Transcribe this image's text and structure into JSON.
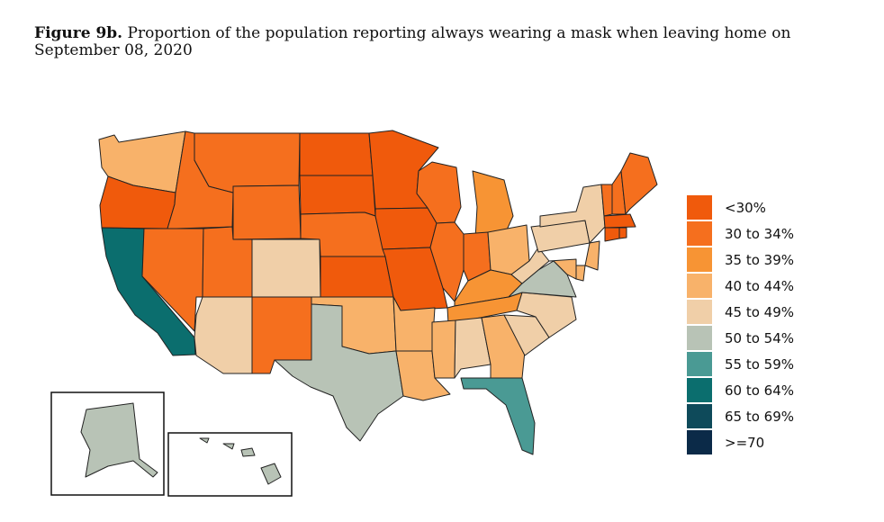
{
  "title": {
    "label": "Figure 9b.",
    "text": "Proportion of the population reporting always wearing a mask when leaving home on September 08, 2020"
  },
  "legend": [
    {
      "label": "<30%",
      "color": "#f05a0c"
    },
    {
      "label": "30 to 34%",
      "color": "#f56f1e"
    },
    {
      "label": "35 to 39%",
      "color": "#f79434"
    },
    {
      "label": "40 to 44%",
      "color": "#f8b26a"
    },
    {
      "label": "45 to 49%",
      "color": "#f0cfa8"
    },
    {
      "label": "50 to 54%",
      "color": "#b8c3b6"
    },
    {
      "label": "55 to 59%",
      "color": "#4a9a94"
    },
    {
      "label": "60 to 64%",
      "color": "#0b6e6e"
    },
    {
      "label": "65 to 69%",
      "color": "#0e4a5a"
    },
    {
      "label": ">=70",
      "color": "#0b2a48"
    }
  ],
  "states": {
    "WA": "40 to 44%",
    "OR": "<30%",
    "CA": "60 to 64%",
    "ID": "30 to 34%",
    "NV": "30 to 34%",
    "MT": "30 to 34%",
    "WY": "30 to 34%",
    "UT": "30 to 34%",
    "AZ": "45 to 49%",
    "CO": "45 to 49%",
    "NM": "30 to 34%",
    "ND": "<30%",
    "SD": "<30%",
    "NE": "30 to 34%",
    "KS": "<30%",
    "OK": "40 to 44%",
    "TX": "50 to 54%",
    "MN": "<30%",
    "IA": "<30%",
    "MO": "<30%",
    "AR": "40 to 44%",
    "LA": "40 to 44%",
    "WI": "30 to 34%",
    "IL": "30 to 34%",
    "MI": "35 to 39%",
    "IN": "30 to 34%",
    "OH": "40 to 44%",
    "KY": "35 to 39%",
    "TN": "35 to 39%",
    "MS": "40 to 44%",
    "AL": "45 to 49%",
    "GA": "40 to 44%",
    "FL": "55 to 59%",
    "SC": "45 to 49%",
    "NC": "45 to 49%",
    "VA": "50 to 54%",
    "WV": "45 to 49%",
    "PA": "45 to 49%",
    "NY": "45 to 49%",
    "VT": "30 to 34%",
    "NH": "30 to 34%",
    "ME": "30 to 34%",
    "MA": "<30%",
    "CT": "<30%",
    "RI": "<30%",
    "NJ": "40 to 44%",
    "DE": "40 to 44%",
    "MD": "40 to 44%",
    "AK": "50 to 54%",
    "HI": "50 to 54%"
  }
}
